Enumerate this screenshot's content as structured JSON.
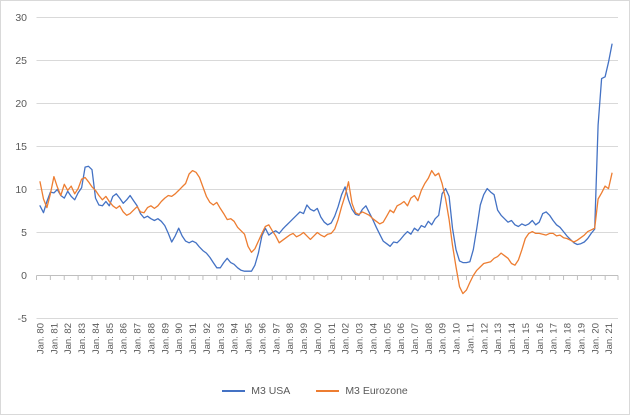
{
  "chart_data": {
    "type": "line",
    "title": "",
    "xlabel": "",
    "ylabel": "",
    "ylim": [
      -5,
      30
    ],
    "y_ticks": [
      30,
      25,
      20,
      15,
      10,
      5,
      0,
      -5
    ],
    "grid": "horizontal",
    "legend_position": "bottom-center",
    "x_labels": [
      "Jan. 80",
      "Jan. 81",
      "Jan. 82",
      "Jan. 83",
      "Jan. 84",
      "Jan. 85",
      "Jan. 86",
      "Jan. 87",
      "Jan. 88",
      "Jan. 89",
      "Jan. 90",
      "Jan. 91",
      "Jan. 92",
      "Jan. 93",
      "Jan. 94",
      "Jan. 95",
      "Jan. 96",
      "Jan. 97",
      "Jan. 98",
      "Jan. 99",
      "Jan. 00",
      "Jan. 01",
      "Jan. 02",
      "Jan. 03",
      "Jan. 04",
      "Jan. 05",
      "Jan. 06",
      "Jan. 07",
      "Jan. 08",
      "Jan. 09",
      "Jan. 10",
      "Jan. 11",
      "Jan. 12",
      "Jan. 13",
      "Jan. 14",
      "Jan. 15",
      "Jan. 16",
      "Jan. 17",
      "Jan. 18",
      "Jan. 19",
      "Jan. 20",
      "Jan. 21"
    ],
    "x_start_year": 1980,
    "x_step_years": 0.25,
    "series": [
      {
        "name": "M3 USA",
        "color": "#4472C4",
        "values": [
          8.1,
          7.3,
          8.6,
          9.7,
          9.6,
          10.0,
          9.3,
          9.0,
          9.8,
          9.2,
          8.8,
          9.6,
          10.2,
          12.6,
          12.7,
          12.3,
          9.0,
          8.2,
          8.1,
          8.6,
          8.1,
          9.2,
          9.5,
          9.0,
          8.4,
          8.8,
          9.3,
          8.7,
          8.1,
          7.2,
          6.7,
          6.9,
          6.6,
          6.4,
          6.6,
          6.3,
          5.8,
          4.9,
          3.9,
          4.6,
          5.5,
          4.6,
          4.0,
          3.8,
          4.0,
          3.8,
          3.3,
          2.9,
          2.6,
          2.1,
          1.5,
          0.9,
          0.9,
          1.5,
          2.0,
          1.5,
          1.3,
          0.9,
          0.6,
          0.5,
          0.5,
          0.5,
          1.2,
          2.6,
          4.6,
          5.5,
          4.7,
          5.0,
          5.2,
          4.9,
          5.4,
          5.8,
          6.2,
          6.6,
          7.0,
          7.4,
          7.2,
          8.2,
          7.7,
          7.5,
          7.8,
          6.8,
          6.2,
          5.9,
          6.1,
          6.9,
          8.0,
          9.4,
          10.3,
          8.8,
          7.7,
          7.1,
          7.0,
          7.7,
          8.1,
          7.3,
          6.5,
          5.6,
          4.8,
          4.0,
          3.7,
          3.4,
          3.9,
          3.8,
          4.2,
          4.7,
          5.1,
          4.8,
          5.5,
          5.2,
          5.8,
          5.6,
          6.3,
          5.9,
          6.6,
          7.0,
          9.5,
          10.1,
          9.2,
          5.5,
          3.0,
          1.7,
          1.5,
          1.5,
          1.6,
          3.0,
          5.5,
          8.2,
          9.4,
          10.1,
          9.7,
          9.4,
          7.6,
          7.0,
          6.6,
          6.2,
          6.4,
          5.9,
          5.7,
          6.0,
          5.8,
          6.0,
          6.4,
          5.9,
          6.2,
          7.2,
          7.4,
          7.0,
          6.4,
          5.9,
          5.6,
          5.1,
          4.6,
          4.2,
          3.8,
          3.6,
          3.7,
          3.9,
          4.3,
          4.9,
          5.4,
          17.5,
          22.9,
          23.1,
          24.8,
          26.9
        ]
      },
      {
        "name": "M3 Eurozone",
        "color": "#ED7D31",
        "values": [
          10.9,
          8.9,
          7.9,
          9.5,
          11.5,
          10.3,
          9.3,
          10.6,
          9.9,
          10.4,
          9.5,
          10.1,
          11.2,
          11.4,
          10.9,
          10.3,
          9.9,
          9.3,
          8.8,
          9.2,
          8.6,
          8.1,
          7.8,
          8.1,
          7.4,
          7.0,
          7.2,
          7.6,
          8.0,
          7.4,
          7.3,
          7.9,
          8.1,
          7.8,
          8.1,
          8.6,
          9.0,
          9.3,
          9.2,
          9.5,
          9.9,
          10.3,
          10.7,
          11.8,
          12.2,
          12.0,
          11.4,
          10.3,
          9.2,
          8.5,
          8.2,
          8.5,
          7.8,
          7.2,
          6.5,
          6.6,
          6.3,
          5.6,
          5.2,
          4.8,
          3.4,
          2.7,
          3.1,
          4.0,
          4.9,
          5.7,
          5.9,
          5.2,
          4.6,
          3.8,
          4.1,
          4.4,
          4.7,
          4.9,
          4.5,
          4.7,
          5.0,
          4.6,
          4.2,
          4.6,
          5.0,
          4.7,
          4.5,
          4.8,
          4.9,
          5.4,
          6.5,
          8.0,
          9.3,
          10.9,
          8.4,
          7.3,
          7.1,
          7.4,
          7.2,
          7.0,
          6.6,
          6.3,
          6.0,
          6.2,
          6.9,
          7.6,
          7.3,
          8.1,
          8.3,
          8.6,
          8.1,
          9.0,
          9.3,
          8.7,
          9.9,
          10.7,
          11.3,
          12.2,
          11.6,
          11.9,
          10.7,
          8.9,
          6.5,
          3.5,
          1.0,
          -1.3,
          -2.1,
          -1.7,
          -0.8,
          0.0,
          0.6,
          1.0,
          1.4,
          1.5,
          1.6,
          2.0,
          2.2,
          2.6,
          2.3,
          2.0,
          1.4,
          1.2,
          1.8,
          3.0,
          4.3,
          4.9,
          5.1,
          4.9,
          4.9,
          4.8,
          4.7,
          4.9,
          4.9,
          4.6,
          4.7,
          4.4,
          4.3,
          4.1,
          3.9,
          4.1,
          4.4,
          4.7,
          5.1,
          5.3,
          5.5,
          8.9,
          9.6,
          10.4,
          10.1,
          11.9
        ]
      }
    ],
    "colors": {
      "background": "#FFFFFF",
      "border": "#D9D9D9",
      "gridline": "#D9D9D9",
      "axis_line": "#BFBFBF",
      "tick_mark": "#BFBFBF",
      "axis_text": "#595959"
    }
  }
}
